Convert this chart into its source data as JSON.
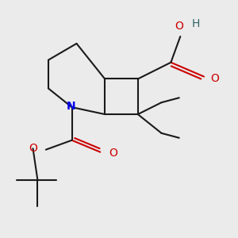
{
  "bg_color": "#ebebeb",
  "bond_color": "#1a1a1a",
  "N_color": "#0000ee",
  "O_color": "#cc0000",
  "H_color": "#336666",
  "lw": 1.5,
  "dbo": 0.013,
  "figsize": [
    3.0,
    3.0
  ],
  "dpi": 100,
  "xlim": [
    0.0,
    1.0
  ],
  "ylim": [
    0.0,
    1.0
  ]
}
